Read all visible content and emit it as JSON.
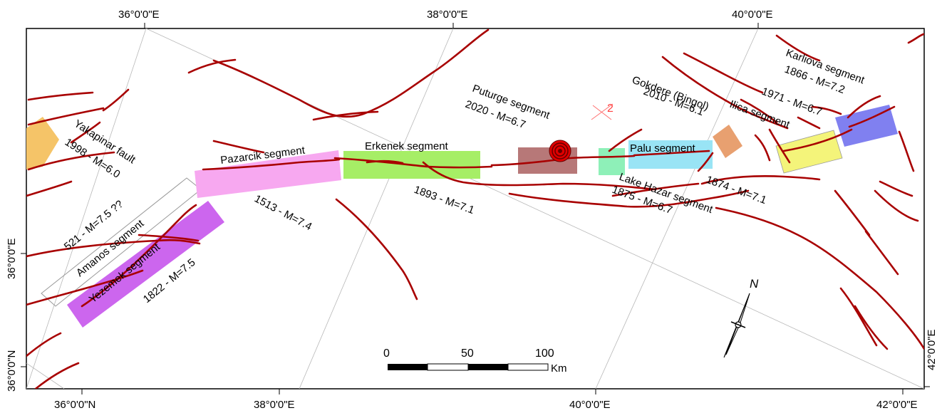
{
  "map": {
    "ticks": {
      "top": [
        "36°0'0\"E",
        "38°0'0\"E",
        "40°0'0\"E"
      ],
      "bottom": [
        "36°0'0\"N",
        "38°0'0\"E",
        "40°0'0\"E",
        "42°0'0\"E"
      ],
      "left": [
        "36°0'0\"E",
        "36°0'0\"N"
      ],
      "right": [
        "42°0'0\"E"
      ]
    },
    "segments": {
      "yakapinar_name": "Yakapinar fault",
      "yakapinar_event": "1998 - M=6.0",
      "amanos_event": "521 - M=7.5 ??",
      "amanos_name": "Amanos segment",
      "yezemek_name": "Yezemek segment",
      "yezemek_event": "1822 - M=7.5",
      "pazarcik_name": "Pazarcik segment",
      "pazarcik_event": "1513 - M=7.4",
      "erkenek_name": "Erkenek segment",
      "erkenek_event": "1893 - M=7.1",
      "puturge_name": "Puturge segment",
      "puturge_event": "2020 - M=6.7",
      "palu_name": "Palu segment",
      "palu_event": "1874 - M=7.1",
      "lakehazar_event": "1875 - M=6.7",
      "lakehazar_name": "Lake Hazar segment",
      "gokdere_name": "Gokdere (Bingol)",
      "gokdere_event": "2010 - M=6.1",
      "ilica_name": "Ilica segment",
      "ilica_event": "1971 - M=6.7",
      "karliova_name": "Karliova segment",
      "karliova_event": "1866 - M=7.2"
    },
    "marker_label": "2",
    "scale": {
      "label_0": "0",
      "label_50": "50",
      "label_100": "100",
      "unit": "Km"
    },
    "north_label": "N",
    "colors": {
      "fault": "#a80000",
      "yakapinar": "#f5c468",
      "yezemek": "#cc66ee",
      "pazarcik": "#f7a8f0",
      "erkenek": "#a6ee66",
      "puturge": "#b77878",
      "lakehazar": "#8ef0b8",
      "palu": "#99e4f5",
      "gokdere": "#e8a070",
      "ilica": "#f4f47a",
      "karliova": "#8080f0"
    }
  }
}
